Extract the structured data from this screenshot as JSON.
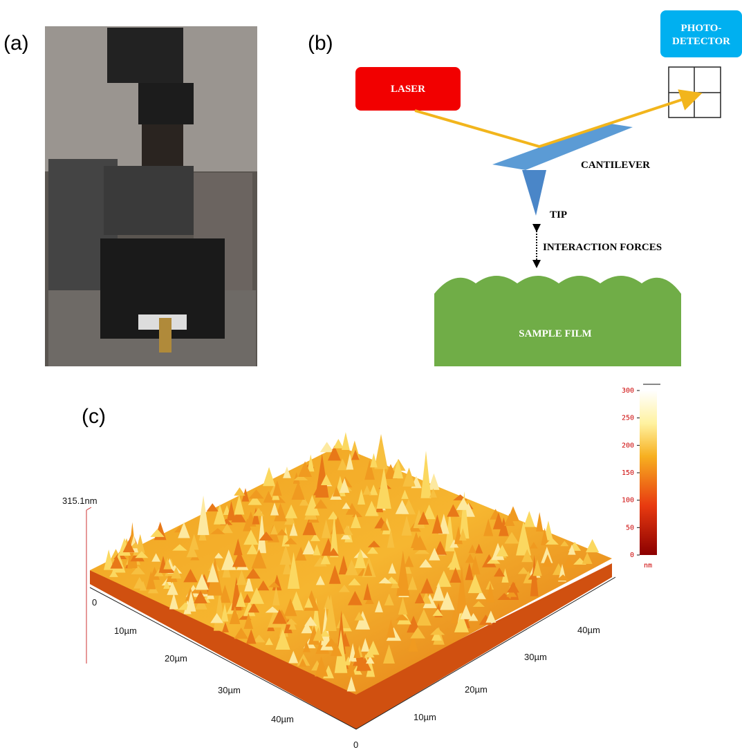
{
  "panels": {
    "a": "(a)",
    "b": "(b)",
    "c": "(c)"
  },
  "diagram": {
    "photodetector": [
      "PHOTO-",
      "DETECTOR"
    ],
    "laser": "LASER",
    "cantilever": "CANTILEVER",
    "tip": "TIP",
    "interaction": "INTERACTION FORCES",
    "sample": "SAMPLE FILM"
  },
  "surface": {
    "z_label": "315.1nm",
    "left_axis": [
      "0",
      "10µm",
      "20µm",
      "30µm",
      "40µm"
    ],
    "right_axis": [
      "0",
      "10µm",
      "20µm",
      "30µm",
      "40µm"
    ]
  },
  "colorbar": {
    "range": [
      0,
      300
    ],
    "ticks": [
      0,
      50,
      100,
      150,
      200,
      250,
      300
    ],
    "unit": "nm"
  }
}
